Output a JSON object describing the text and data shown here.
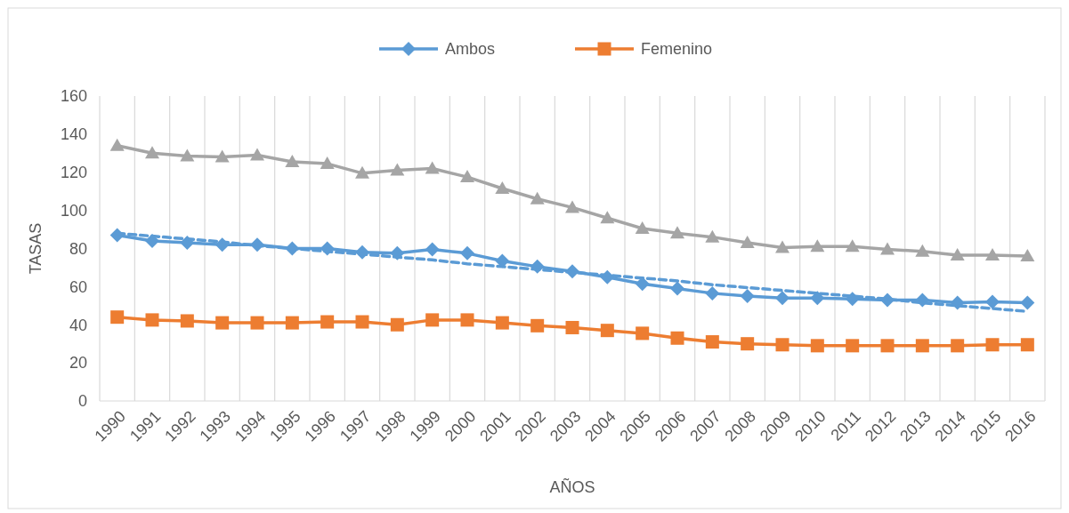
{
  "chart_data": {
    "type": "line",
    "xlabel": "AÑOS",
    "ylabel": "TASAS",
    "categories": [
      "1990",
      "1991",
      "1992",
      "1993",
      "1994",
      "1995",
      "1996",
      "1997",
      "1998",
      "1999",
      "2000",
      "2001",
      "2002",
      "2003",
      "2004",
      "2005",
      "2006",
      "2007",
      "2008",
      "2009",
      "2010",
      "2011",
      "2012",
      "2013",
      "2014",
      "2015",
      "2016"
    ],
    "ylim": [
      0,
      160
    ],
    "yticks": [
      0,
      20,
      40,
      60,
      80,
      100,
      120,
      140,
      160
    ],
    "grid": "x",
    "legend": "top",
    "series": [
      {
        "name": "Ambos",
        "color": "#5b9bd5",
        "marker": "diamond",
        "values": [
          87,
          84,
          83,
          82,
          82,
          80,
          80,
          78,
          77.5,
          79.5,
          77.5,
          73.5,
          70.5,
          68,
          65,
          61.5,
          59,
          56.5,
          55,
          54,
          54,
          53.5,
          53,
          53,
          51.5,
          52,
          51.5
        ]
      },
      {
        "name": "Femenino",
        "color": "#ed7d31",
        "marker": "square",
        "values": [
          44,
          42.5,
          42,
          41,
          41,
          41,
          41.5,
          41.5,
          40,
          42.5,
          42.5,
          41,
          39.5,
          38.5,
          37,
          35.5,
          33,
          31,
          30,
          29.5,
          29,
          29,
          29,
          29,
          29,
          29.5,
          29.5
        ]
      },
      {
        "color": "#a5a5a5",
        "marker": "triangle",
        "values": [
          134,
          130,
          128.5,
          128,
          129,
          125.5,
          124.5,
          119.5,
          121,
          122,
          117.5,
          111.5,
          106,
          101.5,
          96,
          90.5,
          88,
          86,
          83,
          80.5,
          81,
          81,
          79.5,
          78.5,
          76.5,
          76.5,
          76
        ]
      },
      {
        "color": "#5b9bd5",
        "marker": "none",
        "line_style": "dashed",
        "values": [
          88,
          86.5,
          85,
          83.5,
          81.5,
          80,
          78.5,
          77,
          75.5,
          74,
          72,
          70.5,
          69,
          67.5,
          66,
          64.5,
          63,
          61,
          59.5,
          58,
          56.5,
          55,
          53.5,
          51.5,
          50,
          48.5,
          47
        ]
      }
    ]
  }
}
